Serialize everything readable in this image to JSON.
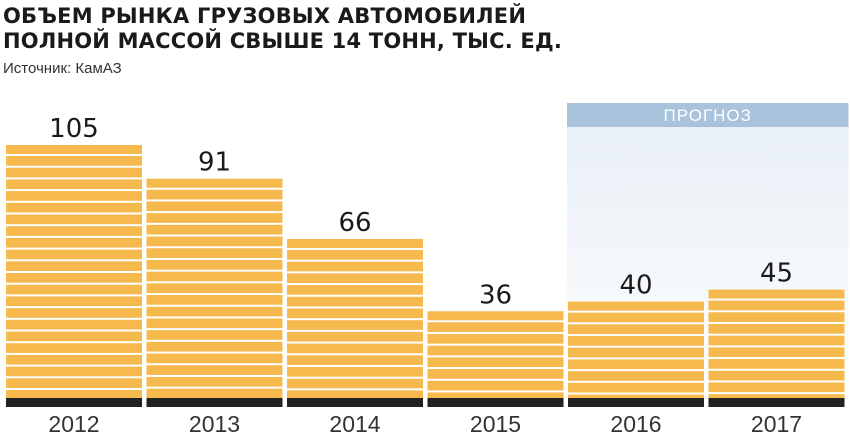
{
  "chart_data": {
    "type": "bar",
    "title": [
      "ОБЪЕМ РЫНКА ГРУЗОВЫХ АВТОМОБИЛЕЙ",
      "ПОЛНОЙ МАССОЙ СВЫШЕ 14 ТОНН, ТЫС. ЕД."
    ],
    "source": "Источник: КамАЗ",
    "categories": [
      "2012",
      "2013",
      "2014",
      "2015",
      "2016",
      "2017"
    ],
    "values": [
      105,
      91,
      66,
      36,
      40,
      45
    ],
    "forecast_label": "ПРОГНОЗ",
    "forecast_categories": [
      "2016",
      "2017"
    ],
    "ylim": [
      0,
      105
    ],
    "colors": {
      "bar": "#f5b94e",
      "stripe": "#ffffff",
      "baseline": "#222222",
      "forecast_header": "#a9c3dd",
      "forecast_fill_top": "#e8eff6",
      "forecast_fill_bottom": "#ffffff"
    }
  }
}
